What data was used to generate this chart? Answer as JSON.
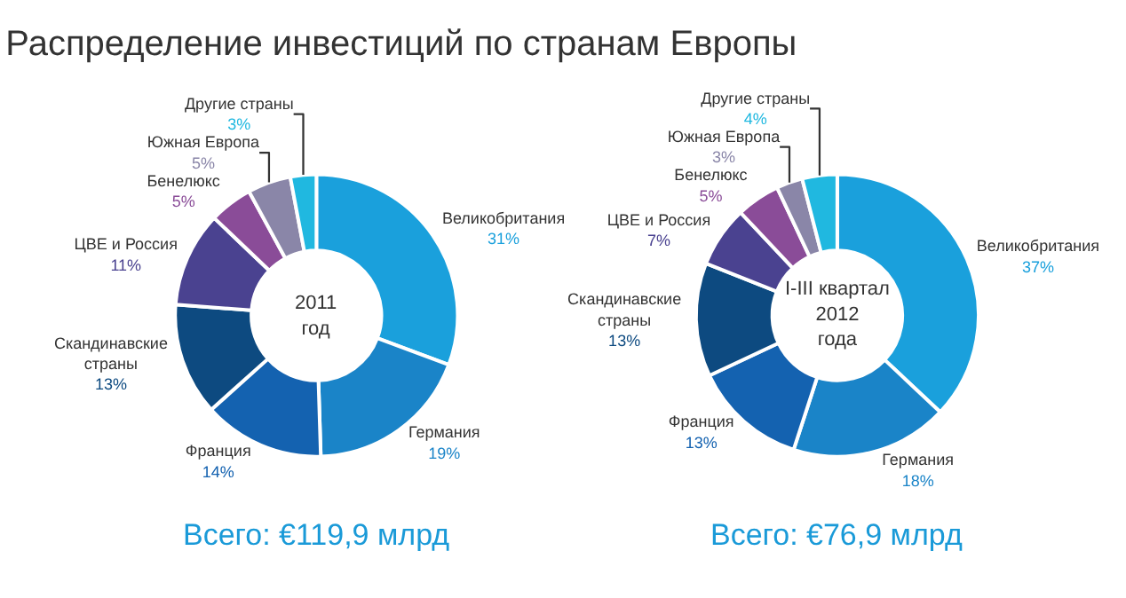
{
  "chart_data": [
    {
      "type": "donut",
      "title": "Распределение инвестиций по странам Европы",
      "categories": [
        "Великобритания",
        "Германия",
        "Франция",
        "Скандинавские страны",
        "ЦВЕ и Россия",
        "Бенелюкс",
        "Южная Европа",
        "Другие страны"
      ],
      "values": [
        31,
        19,
        14,
        13,
        11,
        5,
        5,
        3
      ],
      "value_labels": [
        "31%",
        "19%",
        "14%",
        "13%",
        "11%",
        "5%",
        "5%",
        "3%"
      ],
      "colors": [
        "#1aa0dc",
        "#1a84c8",
        "#1462b0",
        "#0d4a80",
        "#4a4290",
        "#8a4c98",
        "#8a86a8",
        "#20b8e0"
      ],
      "annotations": [
        "2011\nгод",
        "Всего: €119,9 млрд"
      ]
    },
    {
      "type": "donut",
      "categories": [
        "Великобритания",
        "Германия",
        "Франция",
        "Скандинавские страны",
        "ЦВЕ и Россия",
        "Бенелюкс",
        "Южная Европа",
        "Другие страны"
      ],
      "values": [
        37,
        18,
        13,
        13,
        7,
        5,
        3,
        4
      ],
      "value_labels": [
        "37%",
        "18%",
        "13%",
        "13%",
        "7%",
        "5%",
        "3%",
        "4%"
      ],
      "colors": [
        "#1aa0dc",
        "#1a84c8",
        "#1462b0",
        "#0d4a80",
        "#4a4290",
        "#8a4c98",
        "#8a86a8",
        "#20b8e0"
      ],
      "annotations": [
        "I-III квартал\n2012\nгода",
        "Всего: €76,9 млрд"
      ]
    }
  ]
}
